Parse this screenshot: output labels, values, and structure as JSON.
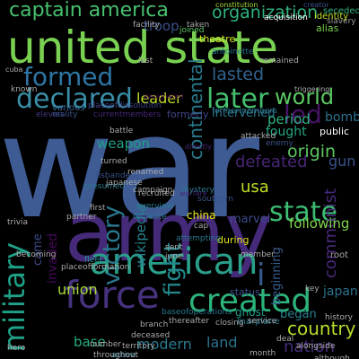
{
  "image": {
    "background": "#000000"
  },
  "words": [
    {
      "text": "war",
      "color": "#3e5b94"
    },
    {
      "text": "army",
      "color": "#452a7a"
    },
    {
      "text": "united state",
      "color": "#7ad151"
    },
    {
      "text": "force",
      "color": "#46327e"
    },
    {
      "text": "created",
      "color": "#2db47b"
    },
    {
      "text": "american",
      "color": "#2a9f8a"
    },
    {
      "text": "formed",
      "color": "#2e75a3"
    },
    {
      "text": "declared",
      "color": "#3a8ea7"
    },
    {
      "text": "captain america",
      "color": "#47c16e"
    },
    {
      "text": "organization",
      "color": "#2eb37c"
    },
    {
      "text": "world",
      "color": "#5cc863"
    },
    {
      "text": "later",
      "color": "#46c06f"
    },
    {
      "text": "military",
      "color": "#1fa188"
    },
    {
      "text": "state",
      "color": "#3dbc74"
    },
    {
      "text": "led",
      "color": "#471365"
    },
    {
      "text": "fight",
      "color": "#23888e"
    },
    {
      "text": "victory",
      "color": "#2a788e"
    },
    {
      "text": "country",
      "color": "#b5de2b"
    },
    {
      "text": "continental",
      "color": "#2a7b8e"
    },
    {
      "text": "defeated",
      "color": "#482576"
    },
    {
      "text": "origin",
      "color": "#5ec962"
    },
    {
      "text": "lasted",
      "color": "#33638d"
    },
    {
      "text": "leader",
      "color": "#c2df23"
    },
    {
      "text": "troop",
      "color": "#3b518b"
    },
    {
      "text": "usa",
      "color": "#bddf26"
    },
    {
      "text": "communist",
      "color": "#482878"
    },
    {
      "text": "union",
      "color": "#a8db34"
    },
    {
      "text": "period",
      "color": "#2db27d"
    },
    {
      "text": "wikipedia",
      "color": "#26828e"
    },
    {
      "text": "modern",
      "color": "#2a788e"
    },
    {
      "text": "land",
      "color": "#2b748e"
    },
    {
      "text": "nation",
      "color": "#472d7b"
    },
    {
      "text": "weapon",
      "color": "#1f9f88"
    },
    {
      "text": "gun",
      "color": "#3b528b"
    },
    {
      "text": "bomb",
      "color": "#2d708e"
    },
    {
      "text": "intervened",
      "color": "#2a788e"
    },
    {
      "text": "fought",
      "color": "#22a884"
    },
    {
      "text": "following",
      "color": "#7fd34e"
    },
    {
      "text": "base",
      "color": "#27ad81"
    },
    {
      "text": "invaded",
      "color": "#46085c"
    },
    {
      "text": "japan",
      "color": "#2c728e"
    },
    {
      "text": "came",
      "color": "#3e4989"
    },
    {
      "text": "began",
      "color": "#26828e"
    },
    {
      "text": "beginning",
      "color": "#365c8d"
    },
    {
      "text": "i",
      "color": "#365d8d"
    },
    {
      "text": "marvel",
      "color": "#3e4a89"
    },
    {
      "text": "public",
      "color": "#ffffff"
    },
    {
      "text": "china",
      "color": "#e7e419"
    }
  ],
  "small_words": [
    "facility",
    "constitution",
    "creator",
    "seceded",
    "slavery",
    "alias",
    "identity",
    "acquisition",
    "theatre",
    "joined",
    "antoinette",
    "formermembers",
    "currentmembers",
    "placeofdissolution",
    "eleven",
    "reality",
    "formerly",
    "various",
    "designated",
    "directly",
    "enemy",
    "fleet",
    "status",
    "ghost",
    "baseofoperations",
    "marplane",
    "closing",
    "key",
    "root",
    "history",
    "hero",
    "active",
    "territory",
    "recruited",
    "turned",
    "presumed",
    "disbanded",
    "warfare",
    "overview",
    "campaign",
    "renamed",
    "first",
    "recreate",
    "during",
    "june",
    "cap",
    "triggering",
    "attempting",
    "mystery",
    "japanese",
    "southern",
    "service",
    "deal",
    "alongside",
    "number",
    "month",
    "last",
    "known",
    "cuba",
    "trivia",
    "becoming",
    "partner",
    "placeofformation",
    "deceased",
    "thereafter",
    "branch",
    "throughout",
    "although",
    "taken",
    "sent",
    "remained",
    "attacked",
    "battle",
    "member",
    "occupied"
  ]
}
